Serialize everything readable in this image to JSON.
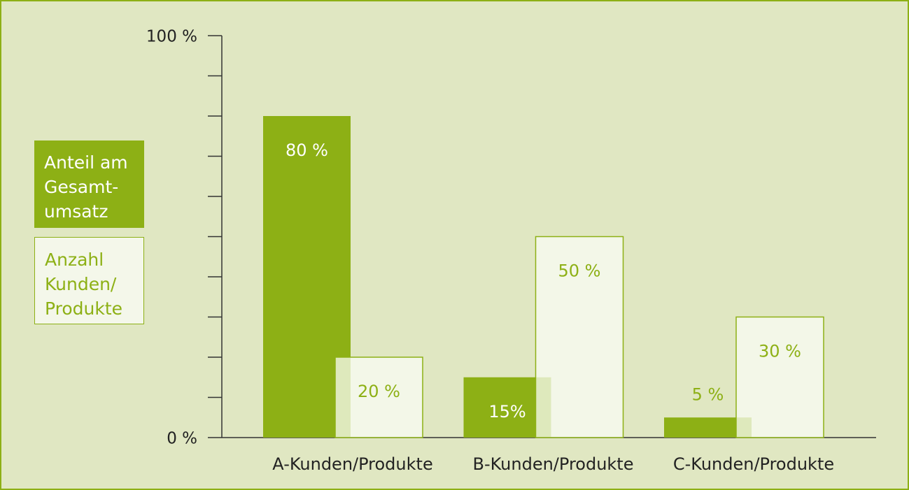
{
  "chart_data": {
    "type": "bar",
    "categories": [
      "A-Kunden/Produkte",
      "B-Kunden/Produkte",
      "C-Kunden/Produkte"
    ],
    "series": [
      {
        "name": "Anteil am Gesamt- umsatz",
        "color": "#8db015",
        "values": [
          80,
          15,
          5
        ],
        "value_labels": [
          "80 %",
          "15%",
          "5 %"
        ]
      },
      {
        "name": "Anzahl Kunden/ Produkte",
        "color": "#f4f7ea",
        "values": [
          20,
          50,
          30
        ],
        "value_labels": [
          "20 %",
          "50 %",
          "30 %"
        ]
      }
    ],
    "ylim": [
      0,
      100
    ],
    "yticks": [
      {
        "value": 0,
        "label": "0 %"
      },
      {
        "value": 100,
        "label": "100 %"
      }
    ],
    "minor_yticks": [
      10,
      20,
      30,
      40,
      50,
      60,
      70,
      80,
      90
    ],
    "legend": "left"
  }
}
